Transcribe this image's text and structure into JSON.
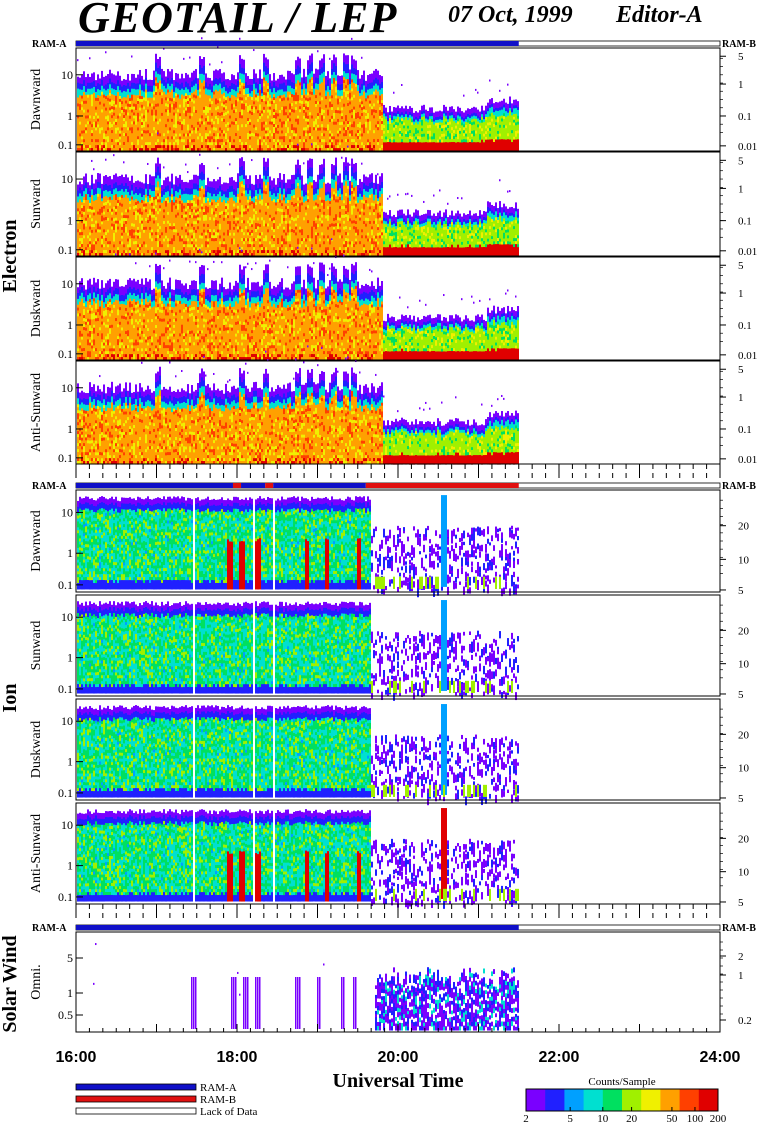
{
  "header": {
    "title": "GEOTAIL / LEP",
    "date": "07 Oct, 1999",
    "editor": "Editor-A"
  },
  "ram_labels": {
    "left": "RAM-A",
    "right": "RAM-B"
  },
  "groups": [
    {
      "name": "Electron",
      "panels": [
        "Dawnward",
        "Sunward",
        "Duskward",
        "Anti-Sunward"
      ],
      "left_ticks": [
        "10",
        "1",
        "0.1"
      ],
      "right_ticks": [
        "5",
        "1",
        "0.1",
        "0.01"
      ]
    },
    {
      "name": "Ion",
      "panels": [
        "Dawnward",
        "Sunward",
        "Duskward",
        "Anti-Sunward"
      ],
      "left_ticks": [
        "10",
        "1",
        "0.1"
      ],
      "right_ticks": [
        "20",
        "10",
        "5"
      ]
    },
    {
      "name": "Solar Wind",
      "panels": [
        "Omni."
      ],
      "left_ticks": [
        "5",
        "1",
        "0.5"
      ],
      "right_ticks": [
        "2",
        "1",
        "0.2"
      ]
    }
  ],
  "x_axis": {
    "label": "Universal Time",
    "ticks": [
      "16:00",
      "18:00",
      "20:00",
      "22:00",
      "24:00"
    ]
  },
  "legend": {
    "items": [
      {
        "label": "RAM-A",
        "color": "#1010c8"
      },
      {
        "label": "RAM-B",
        "color": "#e01010"
      },
      {
        "label": "Lack of Data",
        "color": "#ffffff"
      }
    ]
  },
  "colorbar": {
    "title": "Counts/Sample",
    "ticks": [
      "2",
      "5",
      "10",
      "20",
      "50",
      "100",
      "200"
    ],
    "colors": [
      "#7a00ff",
      "#2020ff",
      "#00a0ff",
      "#00e0d0",
      "#00e060",
      "#a0f000",
      "#f0f000",
      "#ffa000",
      "#ff4000",
      "#e00000"
    ]
  },
  "chart_data": {
    "type": "heatmap",
    "x_range_hours": [
      16,
      24
    ],
    "data_end_hour": 21.5,
    "ram_b_interval_ion_hours": [
      19.6,
      21.5
    ]
  }
}
